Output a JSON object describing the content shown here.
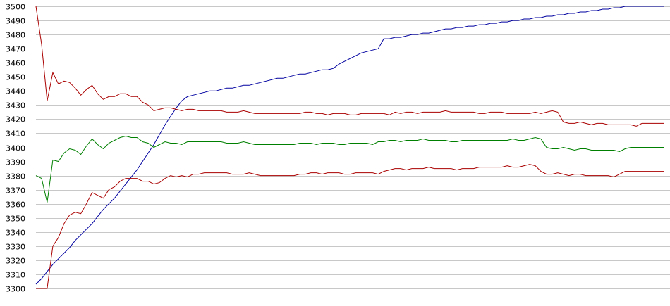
{
  "chart_data": {
    "type": "line",
    "title": "",
    "xlabel": "",
    "ylabel": "",
    "ylim": [
      3300,
      3500
    ],
    "yticks": [
      3300,
      3310,
      3320,
      3330,
      3340,
      3350,
      3360,
      3370,
      3380,
      3390,
      3400,
      3410,
      3420,
      3430,
      3440,
      3450,
      3460,
      3470,
      3480,
      3490,
      3500
    ],
    "grid": "horizontal",
    "legend": "none",
    "x": [
      0,
      1,
      2,
      3,
      4,
      5,
      6,
      7,
      8,
      9,
      10,
      11,
      12,
      13,
      14,
      15,
      16,
      17,
      18,
      19,
      20,
      21,
      22,
      23,
      24,
      25,
      26,
      27,
      28,
      29,
      30,
      31,
      32,
      33,
      34,
      35,
      36,
      37,
      38,
      39,
      40,
      41,
      42,
      43,
      44,
      45,
      46,
      47,
      48,
      49,
      50,
      51,
      52,
      53,
      54,
      55,
      56,
      57,
      58,
      59,
      60,
      61,
      62,
      63,
      64,
      65,
      66,
      67,
      68,
      69,
      70,
      71,
      72,
      73,
      74,
      75,
      76,
      77,
      78,
      79,
      80,
      81,
      82,
      83,
      84,
      85,
      86,
      87,
      88,
      89,
      90,
      91,
      92,
      93,
      94,
      95,
      96,
      97,
      98,
      99,
      100,
      101,
      102,
      103,
      104,
      105,
      106,
      107,
      108,
      109,
      110,
      111,
      112
    ],
    "series": [
      {
        "color": "#0000a0",
        "values": [
          3303,
          3307,
          3312,
          3317,
          3321,
          3325,
          3329,
          3334,
          3338,
          3342,
          3346,
          3351,
          3356,
          3360,
          3364,
          3369,
          3374,
          3379,
          3384,
          3390,
          3396,
          3402,
          3409,
          3416,
          3422,
          3428,
          3433,
          3436,
          3437,
          3438,
          3439,
          3440,
          3440,
          3441,
          3442,
          3442,
          3443,
          3444,
          3444,
          3445,
          3446,
          3447,
          3448,
          3449,
          3449,
          3450,
          3451,
          3452,
          3452,
          3453,
          3454,
          3455,
          3455,
          3456,
          3459,
          3461,
          3463,
          3465,
          3467,
          3468,
          3469,
          3470,
          3477,
          3477,
          3478,
          3478,
          3479,
          3480,
          3480,
          3481,
          3481,
          3482,
          3483,
          3484,
          3484,
          3485,
          3485,
          3486,
          3486,
          3487,
          3487,
          3488,
          3488,
          3489,
          3489,
          3490,
          3490,
          3491,
          3491,
          3492,
          3492,
          3493,
          3493,
          3494,
          3494,
          3495,
          3495,
          3496,
          3496,
          3497,
          3497,
          3498,
          3498,
          3499,
          3499,
          3500,
          3500,
          3500,
          3500,
          3500,
          3500,
          3500,
          3500
        ]
      },
      {
        "color": "#aa0000",
        "values": [
          3500,
          3473,
          3433,
          3453,
          3445,
          3447,
          3446,
          3442,
          3437,
          3441,
          3444,
          3438,
          3434,
          3436,
          3436,
          3438,
          3438,
          3436,
          3436,
          3432,
          3430,
          3426,
          3427,
          3428,
          3428,
          3427,
          3426,
          3427,
          3427,
          3426,
          3426,
          3426,
          3426,
          3426,
          3425,
          3425,
          3425,
          3426,
          3425,
          3424,
          3424,
          3424,
          3424,
          3424,
          3424,
          3424,
          3424,
          3424,
          3425,
          3425,
          3424,
          3424,
          3423,
          3424,
          3424,
          3424,
          3423,
          3423,
          3424,
          3424,
          3424,
          3424,
          3424,
          3423,
          3425,
          3424,
          3425,
          3425,
          3424,
          3425,
          3425,
          3425,
          3425,
          3426,
          3425,
          3425,
          3425,
          3425,
          3425,
          3424,
          3424,
          3425,
          3425,
          3425,
          3424,
          3424,
          3424,
          3424,
          3424,
          3425,
          3424,
          3425,
          3426,
          3425,
          3418,
          3417,
          3417,
          3418,
          3417,
          3416,
          3417,
          3417,
          3416,
          3416,
          3416,
          3416,
          3416,
          3415,
          3417,
          3417,
          3417,
          3417,
          3417
        ]
      },
      {
        "color": "#008000",
        "values": [
          3380,
          3378,
          3361,
          3391,
          3390,
          3396,
          3399,
          3398,
          3395,
          3401,
          3406,
          3402,
          3399,
          3403,
          3405,
          3407,
          3408,
          3407,
          3407,
          3404,
          3403,
          3400,
          3402,
          3404,
          3403,
          3403,
          3402,
          3404,
          3404,
          3404,
          3404,
          3404,
          3404,
          3404,
          3403,
          3403,
          3403,
          3404,
          3403,
          3402,
          3402,
          3402,
          3402,
          3402,
          3402,
          3402,
          3402,
          3403,
          3403,
          3403,
          3402,
          3403,
          3403,
          3403,
          3402,
          3402,
          3403,
          3403,
          3403,
          3403,
          3402,
          3404,
          3404,
          3405,
          3405,
          3404,
          3405,
          3405,
          3405,
          3406,
          3405,
          3405,
          3405,
          3405,
          3404,
          3404,
          3405,
          3405,
          3405,
          3405,
          3405,
          3405,
          3405,
          3405,
          3405,
          3406,
          3405,
          3405,
          3406,
          3407,
          3406,
          3400,
          3399,
          3399,
          3400,
          3399,
          3398,
          3399,
          3399,
          3398,
          3398,
          3398,
          3398,
          3398,
          3397,
          3399,
          3400,
          3400,
          3400,
          3400,
          3400,
          3400,
          3400
        ]
      },
      {
        "color": "#aa0000",
        "values": [
          3300,
          3300,
          3300,
          3330,
          3336,
          3346,
          3352,
          3354,
          3353,
          3360,
          3368,
          3366,
          3364,
          3370,
          3372,
          3376,
          3378,
          3378,
          3378,
          3376,
          3376,
          3374,
          3375,
          3378,
          3380,
          3379,
          3380,
          3379,
          3381,
          3381,
          3382,
          3382,
          3382,
          3382,
          3382,
          3381,
          3381,
          3381,
          3382,
          3381,
          3380,
          3380,
          3380,
          3380,
          3380,
          3380,
          3380,
          3381,
          3381,
          3382,
          3382,
          3381,
          3382,
          3382,
          3382,
          3381,
          3381,
          3382,
          3382,
          3382,
          3382,
          3381,
          3383,
          3384,
          3385,
          3385,
          3384,
          3385,
          3385,
          3385,
          3386,
          3385,
          3385,
          3385,
          3385,
          3384,
          3385,
          3385,
          3385,
          3386,
          3386,
          3386,
          3386,
          3386,
          3387,
          3386,
          3386,
          3387,
          3388,
          3387,
          3383,
          3381,
          3381,
          3382,
          3381,
          3380,
          3381,
          3381,
          3380,
          3380,
          3380,
          3380,
          3380,
          3379,
          3381,
          3383,
          3383,
          3383,
          3383,
          3383,
          3383,
          3383,
          3383
        ]
      }
    ]
  }
}
